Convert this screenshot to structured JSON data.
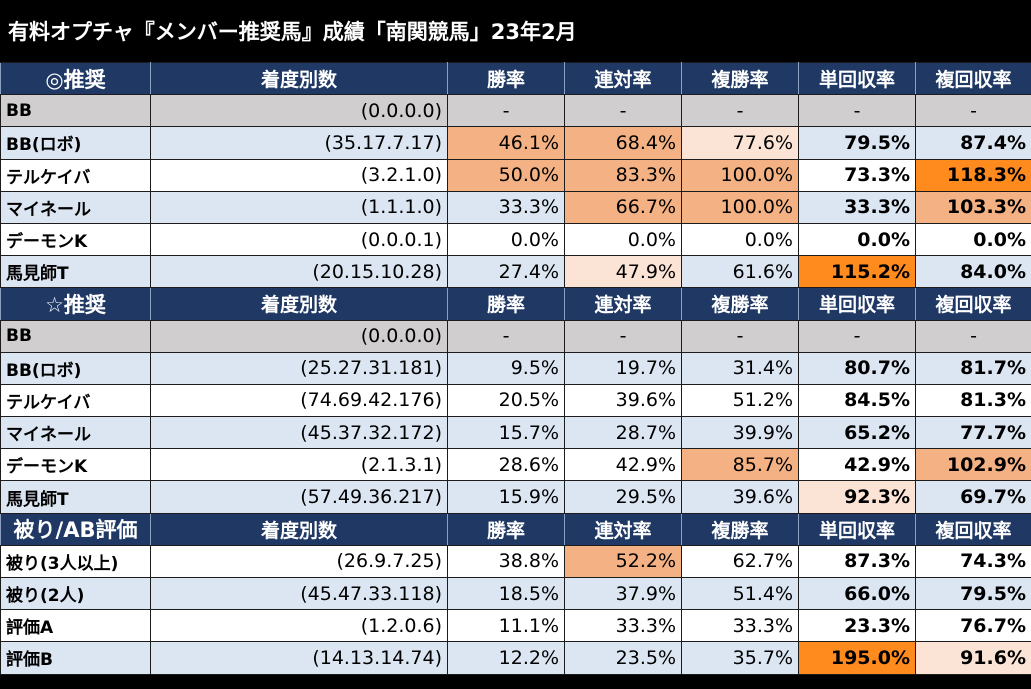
{
  "title": "有料オプチャ『メンバー推奨馬』成績「南関競馬」23年2月",
  "headers": [
    "着度別数",
    "勝率",
    "連対率",
    "複勝率",
    "単回収率",
    "複回収率"
  ],
  "sections": [
    {
      "name": "◎推奨",
      "rows": [
        {
          "label": "BB",
          "counts": "(0.0.0.0)",
          "values": [
            "-",
            "-",
            "-",
            "-",
            "-"
          ]
        },
        {
          "label": "BB(ロボ)",
          "counts": "(35.17.7.17)",
          "values": [
            "46.1%",
            "68.4%",
            "77.6%",
            "79.5%",
            "87.4%"
          ]
        },
        {
          "label": "テルケイバ",
          "counts": "(3.2.1.0)",
          "values": [
            "50.0%",
            "83.3%",
            "100.0%",
            "73.3%",
            "118.3%"
          ]
        },
        {
          "label": "マイネール",
          "counts": "(1.1.1.0)",
          "values": [
            "33.3%",
            "66.7%",
            "100.0%",
            "33.3%",
            "103.3%"
          ]
        },
        {
          "label": "デーモンK",
          "counts": "(0.0.0.1)",
          "values": [
            "0.0%",
            "0.0%",
            "0.0%",
            "0.0%",
            "0.0%"
          ]
        },
        {
          "label": "馬見師T",
          "counts": "(20.15.10.28)",
          "values": [
            "27.4%",
            "47.9%",
            "61.6%",
            "115.2%",
            "84.0%"
          ]
        }
      ]
    },
    {
      "name": "☆推奨",
      "rows": [
        {
          "label": "BB",
          "counts": "(0.0.0.0)",
          "values": [
            "-",
            "-",
            "-",
            "-",
            "-"
          ]
        },
        {
          "label": "BB(ロボ)",
          "counts": "(25.27.31.181)",
          "values": [
            "9.5%",
            "19.7%",
            "31.4%",
            "80.7%",
            "81.7%"
          ]
        },
        {
          "label": "テルケイバ",
          "counts": "(74.69.42.176)",
          "values": [
            "20.5%",
            "39.6%",
            "51.2%",
            "84.5%",
            "81.3%"
          ]
        },
        {
          "label": "マイネール",
          "counts": "(45.37.32.172)",
          "values": [
            "15.7%",
            "28.7%",
            "39.9%",
            "65.2%",
            "77.7%"
          ]
        },
        {
          "label": "デーモンK",
          "counts": "(2.1.3.1)",
          "values": [
            "28.6%",
            "42.9%",
            "85.7%",
            "42.9%",
            "102.9%"
          ]
        },
        {
          "label": "馬見師T",
          "counts": "(57.49.36.217)",
          "values": [
            "15.9%",
            "29.5%",
            "39.6%",
            "92.3%",
            "69.7%"
          ]
        }
      ]
    },
    {
      "name": "被り/AB評価",
      "rows": [
        {
          "label": "被り(3人以上)",
          "counts": "(26.9.7.25)",
          "values": [
            "38.8%",
            "52.2%",
            "62.7%",
            "87.3%",
            "74.3%"
          ]
        },
        {
          "label": "被り(2人)",
          "counts": "(45.47.33.118)",
          "values": [
            "18.5%",
            "37.9%",
            "51.4%",
            "66.0%",
            "79.5%"
          ]
        },
        {
          "label": "評価A",
          "counts": "(1.2.0.6)",
          "values": [
            "11.1%",
            "33.3%",
            "33.3%",
            "23.3%",
            "76.7%"
          ]
        },
        {
          "label": "評価B",
          "counts": "(14.13.14.74)",
          "values": [
            "12.2%",
            "23.5%",
            "35.7%",
            "195.0%",
            "91.6%"
          ]
        }
      ]
    }
  ]
}
